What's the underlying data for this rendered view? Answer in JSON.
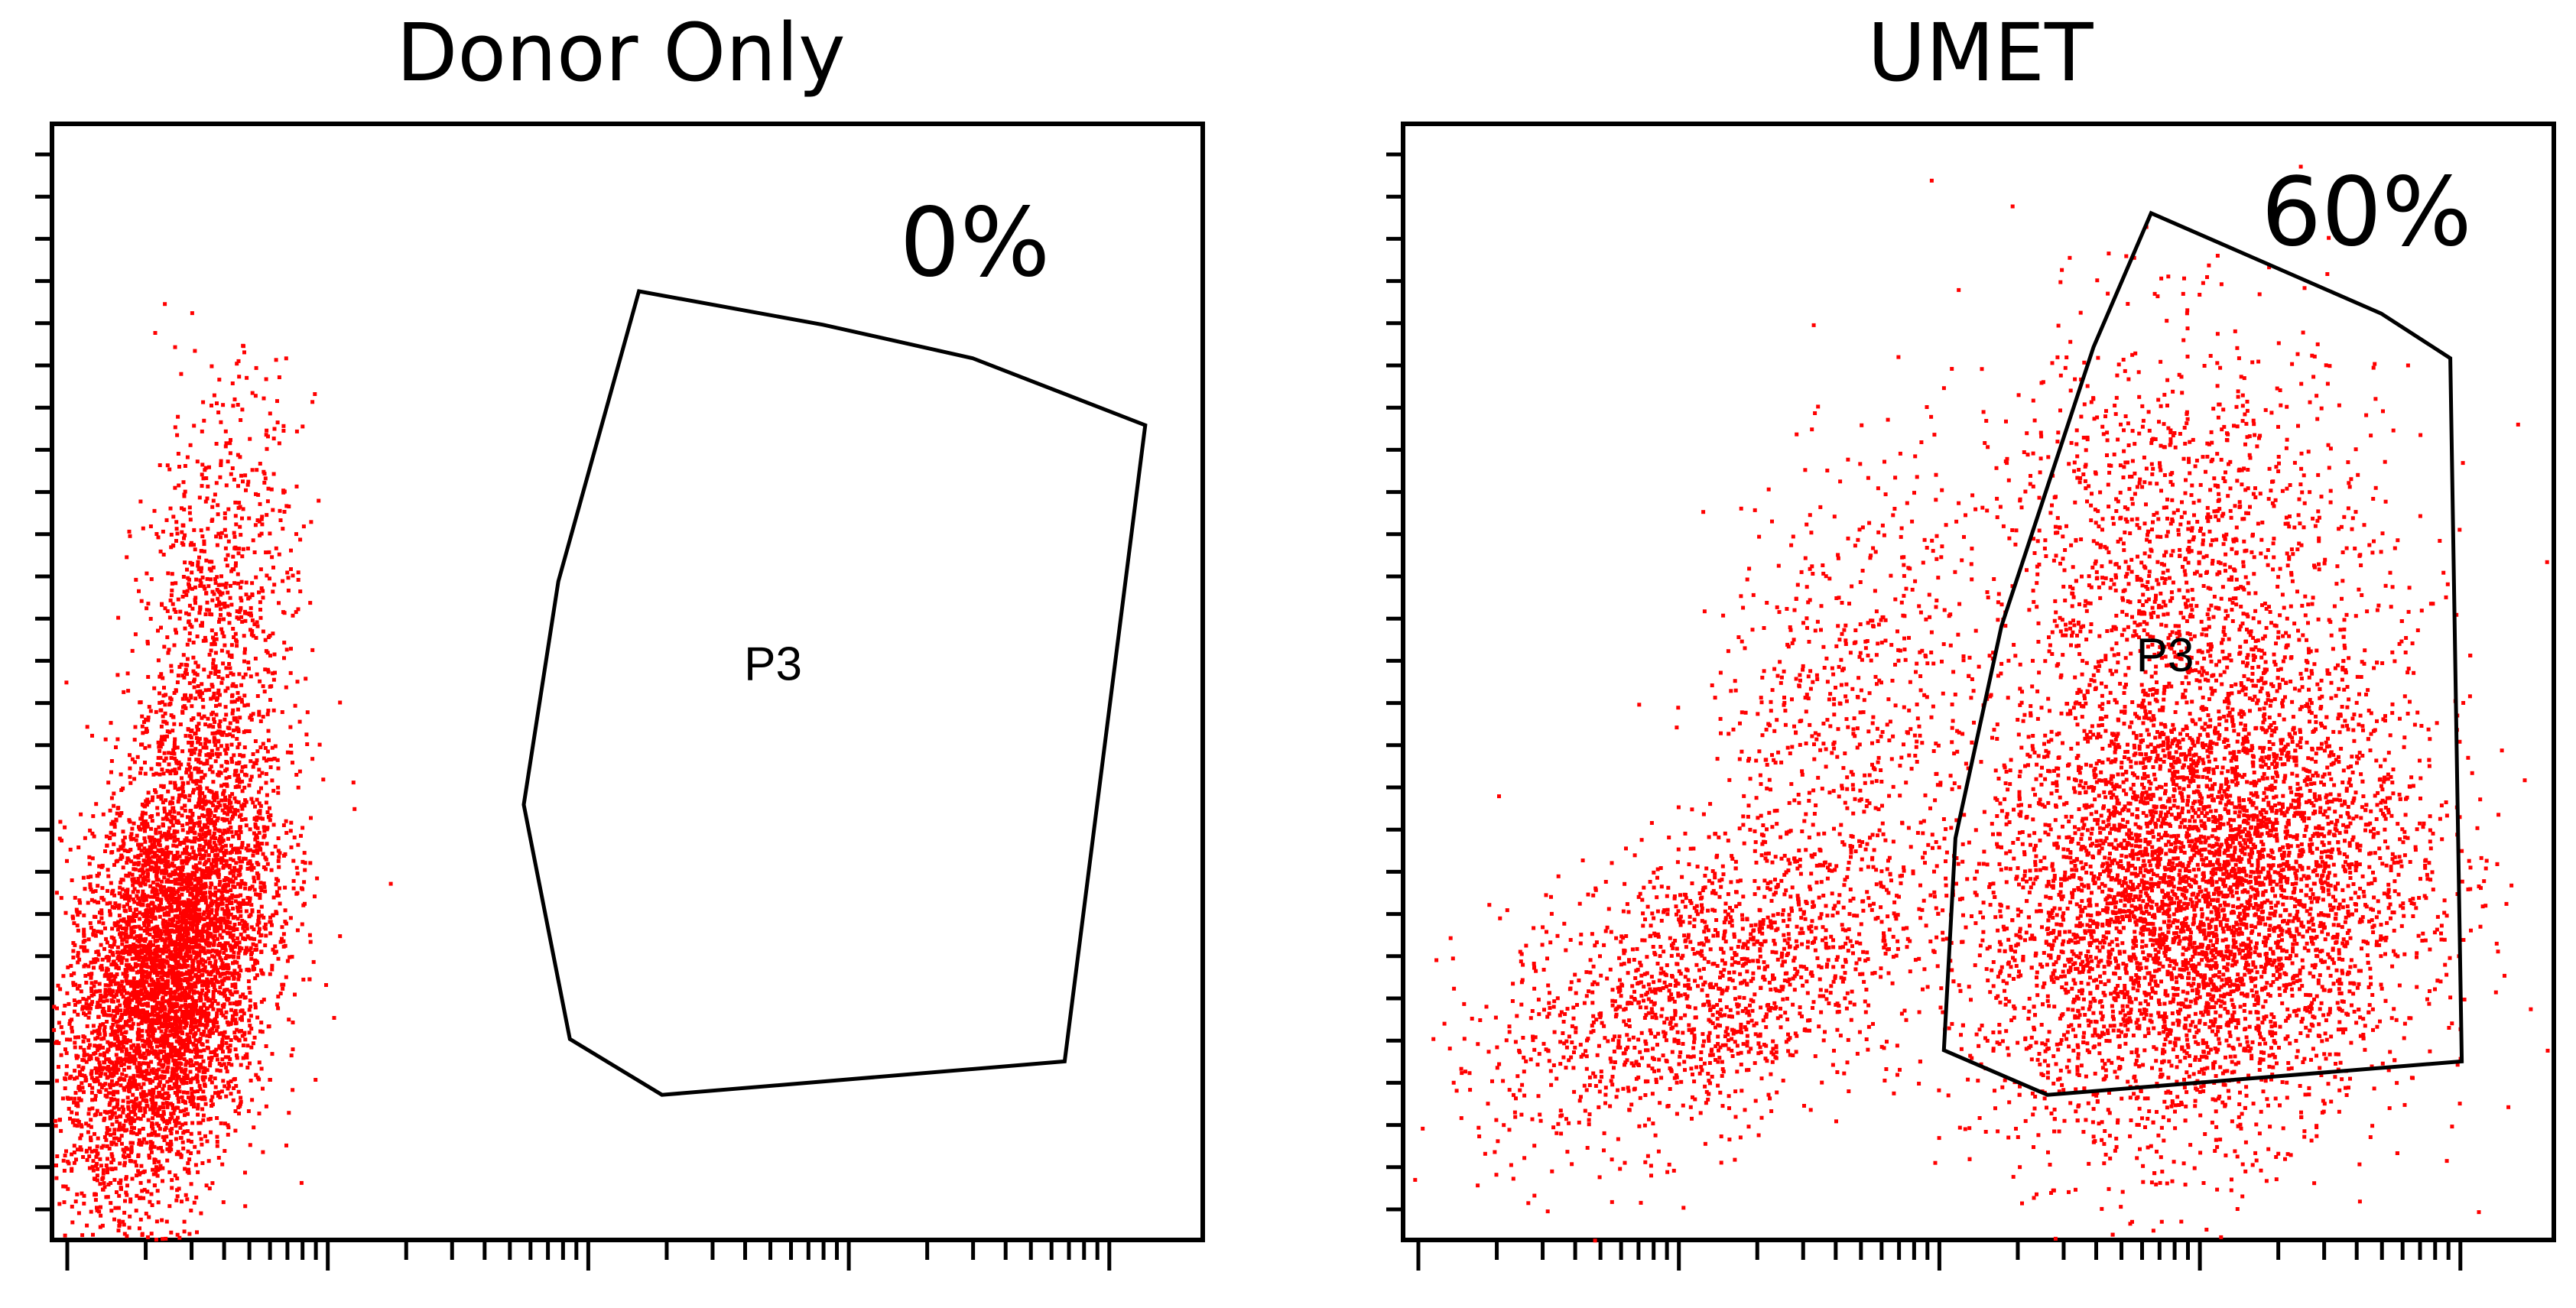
{
  "chart_data": [
    {
      "type": "scatter",
      "title": "Donor Only",
      "annotation": "0%",
      "gate_name": "P3",
      "point_color": "#ff0000",
      "x_range": [
        0,
        10
      ],
      "y_range": [
        0,
        10
      ],
      "clusters": [
        {
          "center": [
            1.0,
            2.4
          ],
          "spread": [
            0.45,
            0.95
          ],
          "count": 5200,
          "tilt": 0.62
        },
        {
          "center": [
            1.4,
            5.4
          ],
          "spread": [
            0.35,
            1.1
          ],
          "count": 900,
          "tilt": 0.55
        }
      ],
      "gate": [
        [
          5.1,
          8.5
        ],
        [
          6.7,
          8.2
        ],
        [
          8.0,
          7.9
        ],
        [
          9.5,
          7.3
        ],
        [
          8.8,
          1.6
        ],
        [
          5.3,
          1.3
        ],
        [
          4.5,
          1.8
        ],
        [
          4.1,
          3.9
        ],
        [
          4.4,
          5.9
        ]
      ]
    },
    {
      "type": "scatter",
      "title": "UMET",
      "annotation": "60%",
      "gate_name": "P3",
      "point_color": "#ff0000",
      "x_range": [
        0,
        10
      ],
      "y_range": [
        0,
        10
      ],
      "clusters": [
        {
          "center": [
            6.9,
            3.1
          ],
          "spread": [
            0.95,
            1.05
          ],
          "count": 5600,
          "tilt": 0.1
        },
        {
          "center": [
            6.7,
            6.0
          ],
          "spread": [
            0.9,
            1.1
          ],
          "count": 1400,
          "tilt": 0.0
        },
        {
          "center": [
            2.6,
            2.3
          ],
          "spread": [
            0.9,
            0.65
          ],
          "count": 1500,
          "tilt": 0.25
        },
        {
          "center": [
            3.8,
            4.7
          ],
          "spread": [
            0.6,
            1.1
          ],
          "count": 600,
          "tilt": 0.35
        }
      ],
      "gate": [
        [
          6.5,
          9.2
        ],
        [
          8.5,
          8.3
        ],
        [
          9.1,
          7.9
        ],
        [
          9.2,
          1.6
        ],
        [
          5.6,
          1.3
        ],
        [
          4.7,
          1.7
        ],
        [
          4.8,
          3.6
        ],
        [
          5.2,
          5.5
        ],
        [
          6.0,
          8.0
        ]
      ]
    }
  ]
}
